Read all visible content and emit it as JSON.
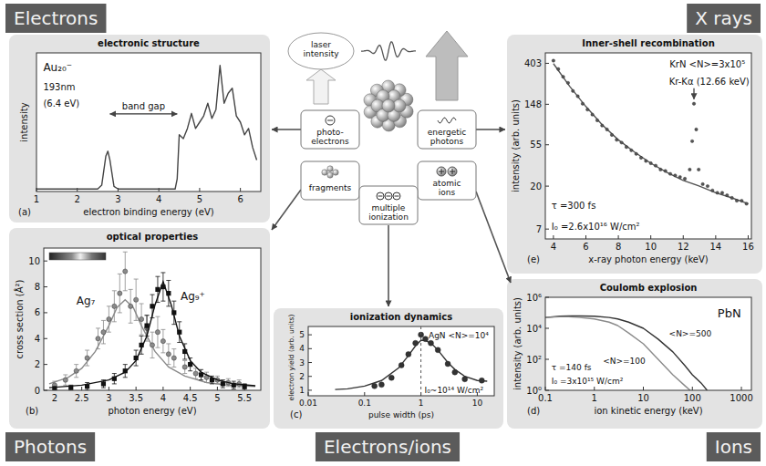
{
  "corner_labels": [
    "Electrons",
    "X rays",
    "Photons",
    "Electrons/ions",
    "Ions"
  ],
  "diagram": {
    "nodes": [
      {
        "label": "laser intensity"
      },
      {
        "label": "photo-electrons"
      },
      {
        "label": "energetic photons"
      },
      {
        "label": "fragments"
      },
      {
        "label": "atomic ions"
      },
      {
        "label": "multiple ionization"
      }
    ]
  },
  "chart_data": [
    {
      "panel": "(a)",
      "title": "electronic structure",
      "type": "line",
      "x_label": "electron binding energy (eV)",
      "y_label": "intensity",
      "xlim": [
        1,
        6.5
      ],
      "xticks": [
        1,
        2,
        3,
        4,
        5,
        6
      ],
      "ylim": [
        0,
        1.1
      ],
      "tick_labels": "x",
      "series": [
        {
          "name": "Au₂₀⁻",
          "color": "#444444",
          "x": [
            1,
            2.5,
            2.6,
            2.7,
            2.75,
            2.8,
            2.9,
            3.0,
            4.4,
            4.45,
            4.5,
            4.6,
            4.7,
            4.8,
            4.9,
            5.0,
            5.1,
            5.2,
            5.3,
            5.4,
            5.5,
            5.6,
            5.7,
            5.8,
            5.9,
            6.0,
            6.1,
            6.2,
            6.3,
            6.4
          ],
          "values": [
            0.02,
            0.02,
            0.05,
            0.28,
            0.32,
            0.25,
            0.04,
            0.02,
            0.02,
            0.1,
            0.45,
            0.42,
            0.5,
            0.62,
            0.5,
            0.55,
            0.6,
            0.7,
            0.58,
            0.65,
            1.0,
            0.7,
            0.78,
            0.82,
            0.6,
            0.55,
            0.45,
            0.5,
            0.35,
            0.25
          ]
        }
      ],
      "annotations": [
        {
          "text": "193nm"
        },
        {
          "text": "(6.4 eV)"
        },
        {
          "text": "band gap",
          "x": [
            2.8,
            4.45
          ]
        }
      ]
    },
    {
      "panel": "(b)",
      "title": "optical properties",
      "type": "scatter",
      "x_label": "photon energy (eV)",
      "y_label": "cross section (Å²)",
      "xlim": [
        1.8,
        5.8
      ],
      "xticks": [
        2,
        2.5,
        3,
        3.5,
        4,
        4.5,
        5,
        5.5
      ],
      "ylim": [
        0,
        11
      ],
      "yticks": [
        0,
        2,
        4,
        6,
        8,
        10
      ],
      "series": [
        {
          "name": "Ag₇",
          "color": "#8a8a8a",
          "marker": "circle",
          "x": [
            2.0,
            2.2,
            2.4,
            2.6,
            2.8,
            2.9,
            3.0,
            3.1,
            3.2,
            3.3,
            3.4,
            3.5,
            3.6,
            3.7,
            3.8,
            3.9,
            4.0,
            4.1,
            4.2,
            4.4,
            4.6,
            4.8,
            5.0,
            5.2,
            5.4
          ],
          "values": [
            0.4,
            0.8,
            1.5,
            2.5,
            4.0,
            4.5,
            5.5,
            6.5,
            7.5,
            9.2,
            6.5,
            7.0,
            5.5,
            4.8,
            3.5,
            4.5,
            3.8,
            2.8,
            2.5,
            1.8,
            1.3,
            1.0,
            0.8,
            0.6,
            0.5
          ],
          "errors": [
            0.3,
            0.4,
            0.5,
            0.6,
            0.8,
            0.9,
            1.0,
            1.2,
            1.5,
            1.5,
            1.3,
            1.6,
            1.2,
            1.0,
            1.0,
            1.2,
            0.9,
            0.8,
            0.7,
            0.5,
            0.4,
            0.4,
            0.3,
            0.3,
            0.3
          ],
          "fit_x": [
            1.9,
            2.25,
            2.5,
            2.75,
            3.0,
            3.15,
            3.3,
            3.45,
            3.6,
            3.85,
            4.1,
            4.4,
            4.8,
            5.2,
            5.7
          ],
          "fit": [
            0.5,
            1.0,
            1.7,
            3.0,
            5.0,
            6.4,
            7.0,
            6.4,
            5.0,
            3.0,
            1.8,
            1.1,
            0.6,
            0.4,
            0.3
          ]
        },
        {
          "name": "Ag₉⁺",
          "color": "#111111",
          "marker": "square",
          "x": [
            2.0,
            2.3,
            2.6,
            2.9,
            3.1,
            3.3,
            3.5,
            3.6,
            3.7,
            3.8,
            3.9,
            4.0,
            4.1,
            4.2,
            4.3,
            4.4,
            4.5,
            4.7,
            4.9,
            5.1,
            5.3,
            5.5
          ],
          "values": [
            0.1,
            0.2,
            0.3,
            0.5,
            0.9,
            1.5,
            2.5,
            3.5,
            5.0,
            6.5,
            7.8,
            8.0,
            7.5,
            6.0,
            4.5,
            3.0,
            2.0,
            1.2,
            0.8,
            0.5,
            0.4,
            0.3
          ],
          "errors": [
            0.2,
            0.2,
            0.3,
            0.3,
            0.4,
            0.5,
            0.6,
            0.7,
            0.8,
            0.9,
            1.0,
            1.1,
            1.0,
            0.9,
            0.8,
            0.6,
            0.5,
            0.4,
            0.3,
            0.3,
            0.3,
            0.2
          ],
          "fit_x": [
            1.9,
            2.5,
            3.0,
            3.3,
            3.5,
            3.7,
            3.85,
            4.0,
            4.15,
            4.3,
            4.5,
            4.7,
            5.0,
            5.3,
            5.7
          ],
          "fit": [
            0.2,
            0.4,
            0.8,
            1.4,
            2.3,
            4.2,
            6.6,
            8.4,
            6.6,
            4.2,
            2.3,
            1.4,
            0.8,
            0.5,
            0.35
          ]
        }
      ]
    },
    {
      "panel": "(c)",
      "title": "ionization dynamics",
      "type": "scatter",
      "log": "x",
      "x_label": "pulse width (ps)",
      "y_label": "electron yield (arb. units)",
      "xlim": [
        0.01,
        20
      ],
      "xticks": [
        0.01,
        0.1,
        1,
        10
      ],
      "ylim": [
        0.6,
        5.6
      ],
      "yticks": [
        1,
        2,
        3,
        4,
        5
      ],
      "series": [
        {
          "name": "AgN <N>=10⁴",
          "color": "#333333",
          "marker": "circle",
          "x": [
            0.15,
            0.2,
            0.3,
            0.45,
            0.6,
            0.8,
            1.0,
            1.2,
            1.5,
            2.0,
            3.0,
            4.0,
            6.0,
            12
          ],
          "values": [
            1.3,
            1.4,
            1.9,
            2.8,
            3.6,
            4.4,
            5.0,
            4.7,
            4.4,
            3.9,
            2.9,
            2.3,
            1.8,
            1.7
          ],
          "fit_x": [
            0.03,
            0.05,
            0.1,
            0.2,
            0.4,
            0.6,
            0.8,
            1.0,
            1.2,
            1.6,
            2,
            3,
            4,
            6,
            10,
            15
          ],
          "fit": [
            1.05,
            1.1,
            1.3,
            1.7,
            2.6,
            3.5,
            4.2,
            4.6,
            4.6,
            4.3,
            3.9,
            3.0,
            2.5,
            2.0,
            1.7,
            1.65
          ]
        }
      ],
      "annotations": [
        {
          "text": "I₀~10¹⁴ W/cm²",
          "x": 1
        }
      ]
    },
    {
      "panel": "(d)",
      "title": "Coulomb explosion",
      "type": "line",
      "log": true,
      "x_label": "ion kinetic energy (keV)",
      "y_label": "intensity (arb. units)",
      "xlim": [
        0.1,
        1600
      ],
      "xticks": [
        0.1,
        1,
        10,
        100,
        1000
      ],
      "ylim": [
        1,
        1000000
      ],
      "yticks": [
        {
          "value": 1,
          "label": "10⁰"
        },
        {
          "value": 100,
          "label": "10²"
        },
        {
          "value": 10000,
          "label": "10⁴"
        },
        {
          "value": 1000000,
          "label": "10⁶"
        }
      ],
      "series": [
        {
          "name": "<N>=500",
          "color": "#333333",
          "x": [
            0.1,
            0.2,
            0.3,
            0.5,
            1,
            2,
            3,
            5,
            10,
            20,
            40,
            70,
            100,
            150,
            200
          ],
          "values": [
            50000,
            60000,
            62000,
            62000,
            60000,
            50000,
            40000,
            25000,
            10000,
            2000,
            300,
            40,
            10,
            3,
            1
          ]
        },
        {
          "name": "<N>=100",
          "color": "#8a8a8a",
          "x": [
            0.1,
            0.2,
            0.3,
            0.5,
            1,
            2,
            3,
            5,
            10,
            20,
            40,
            70,
            90
          ],
          "values": [
            50000,
            55000,
            55000,
            50000,
            40000,
            25000,
            15000,
            5000,
            1000,
            100,
            10,
            2,
            1
          ]
        }
      ],
      "annotations": [
        {
          "text": "PbN"
        },
        {
          "text": "τ =140 fs"
        },
        {
          "text": "I₀ =3x10¹⁵ W/cm²"
        }
      ]
    },
    {
      "panel": "(e)",
      "title": "Inner-shell recombination",
      "type": "scatter",
      "log": "y",
      "x_label": "x-ray photon energy (keV)",
      "y_label": "intensity (arb. units)",
      "xlim": [
        3.5,
        16.2
      ],
      "xticks": [
        4,
        6,
        8,
        10,
        12,
        14,
        16
      ],
      "ylim": [
        5.5,
        520
      ],
      "yticks": [
        7,
        20,
        55,
        148,
        403
      ],
      "series": [
        {
          "name": "KrN <N>=3x10⁵",
          "color": "#555555",
          "marker": "circle",
          "x": [
            4.0,
            4.3,
            4.6,
            4.9,
            5.2,
            5.5,
            5.8,
            6.1,
            6.4,
            6.7,
            7.0,
            7.3,
            7.6,
            7.9,
            8.2,
            8.5,
            8.8,
            9.1,
            9.4,
            9.7,
            10.0,
            10.3,
            10.6,
            10.9,
            11.2,
            11.5,
            11.8,
            12.1,
            12.4,
            12.55,
            12.66,
            12.8,
            12.95,
            13.2,
            13.5,
            13.8,
            14.1,
            14.4,
            14.7,
            15.0,
            15.3,
            15.6,
            15.9
          ],
          "values": [
            430,
            350,
            290,
            250,
            205,
            180,
            150,
            130,
            115,
            100,
            88,
            80,
            70,
            62,
            58,
            52,
            48,
            44,
            40,
            37,
            35,
            33,
            30,
            29,
            27,
            26,
            25,
            24,
            30,
            60,
            150,
            80,
            30,
            21,
            20,
            18,
            17,
            17,
            16,
            15,
            14,
            14,
            13
          ],
          "fit_x": [
            4,
            5,
            6,
            7,
            8,
            9,
            10,
            11,
            12,
            13,
            14,
            15,
            16
          ],
          "fit": [
            400,
            230,
            140,
            90,
            62,
            46,
            35,
            28,
            23,
            20,
            17,
            15,
            13
          ]
        }
      ],
      "annotations": [
        {
          "text": "Kr-Kα (12.66 keV)",
          "x": 12.66,
          "y": 150
        },
        {
          "text": "τ =300 fs"
        },
        {
          "text": "I₀ =2.6x10¹⁶ W/cm²"
        }
      ]
    }
  ]
}
